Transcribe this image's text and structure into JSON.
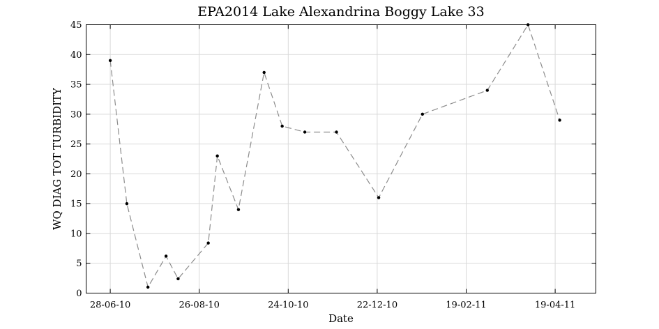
{
  "chart_data": {
    "type": "line",
    "title": "EPA2014 Lake Alexandrina Boggy Lake 33",
    "xlabel": "Date",
    "ylabel": "WQ DIAG TOT TURBIDITY",
    "xlim": [
      "2010-06-12",
      "2011-05-16"
    ],
    "ylim": [
      0,
      45
    ],
    "grid": true,
    "x_ticks": [
      "2010-06-28",
      "2010-08-26",
      "2010-10-24",
      "2010-12-22",
      "2011-02-19",
      "2011-04-19"
    ],
    "x_tick_labels": [
      "28-06-10",
      "26-08-10",
      "24-10-10",
      "22-12-10",
      "19-02-11",
      "19-04-11"
    ],
    "y_ticks": [
      0,
      5,
      10,
      15,
      20,
      25,
      30,
      35,
      40,
      45
    ],
    "series": [
      {
        "color": "#8c8c8c",
        "marker_color": "#000000",
        "line_style": "dashed",
        "x": [
          "2010-06-28",
          "2010-07-09",
          "2010-07-23",
          "2010-08-04",
          "2010-08-12",
          "2010-09-01",
          "2010-09-07",
          "2010-09-21",
          "2010-10-08",
          "2010-10-20",
          "2010-11-04",
          "2010-11-25",
          "2010-12-23",
          "2011-01-21",
          "2011-03-05",
          "2011-04-01",
          "2011-04-22"
        ],
        "y": [
          39,
          15,
          1,
          6.2,
          2.4,
          8.4,
          23,
          14,
          37,
          28,
          27,
          27,
          16,
          30,
          34,
          45,
          29
        ]
      }
    ]
  }
}
